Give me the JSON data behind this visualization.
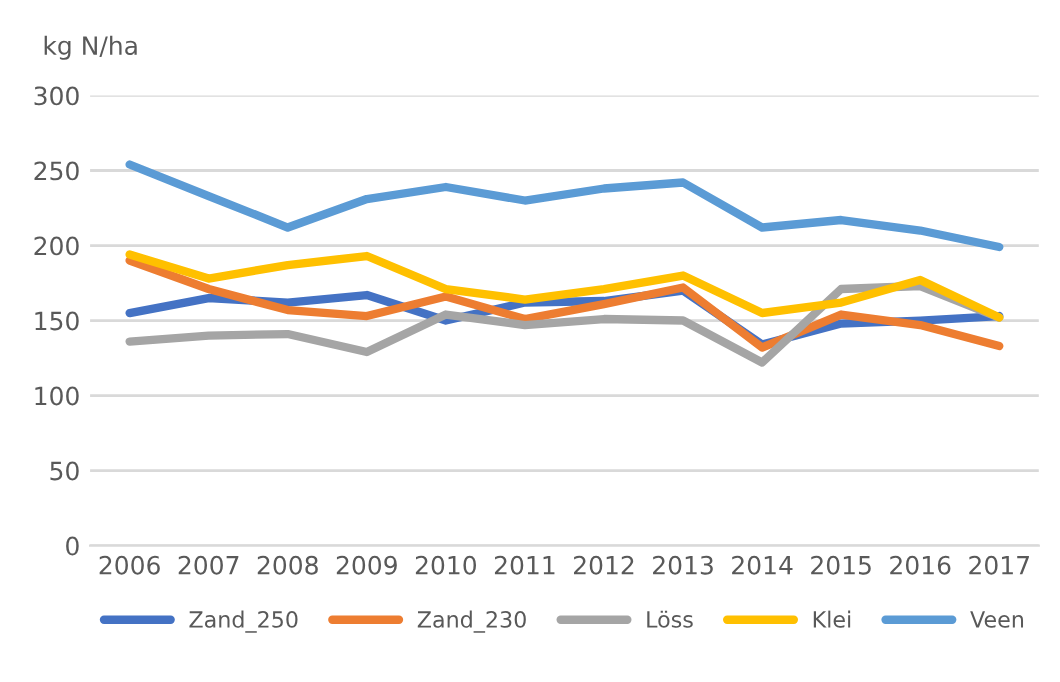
{
  "chart_data": {
    "type": "line",
    "ylabel": "kg N/ha",
    "categories": [
      "2006",
      "2007",
      "2008",
      "2009",
      "2010",
      "2011",
      "2012",
      "2013",
      "2014",
      "2015",
      "2016",
      "2017"
    ],
    "series": [
      {
        "name": "Zand_250",
        "color": "#4472c4",
        "values": [
          155,
          165,
          162,
          167,
          150,
          162,
          163,
          170,
          134,
          148,
          150,
          153
        ]
      },
      {
        "name": "Zand_230",
        "color": "#ed7d31",
        "values": [
          190,
          171,
          157,
          153,
          166,
          151,
          161,
          172,
          132,
          154,
          147,
          133
        ]
      },
      {
        "name": "Löss",
        "color": "#a5a5a5",
        "values": [
          136,
          140,
          141,
          129,
          154,
          147,
          151,
          150,
          122,
          171,
          173,
          152
        ]
      },
      {
        "name": "Klei",
        "color": "#ffc000",
        "values": [
          194,
          178,
          187,
          193,
          171,
          164,
          171,
          180,
          155,
          162,
          177,
          152
        ]
      },
      {
        "name": "Veen",
        "color": "#5b9bd5",
        "values": [
          254,
          233,
          212,
          231,
          239,
          230,
          238,
          242,
          212,
          217,
          210,
          199
        ]
      }
    ],
    "ylim": [
      0,
      300
    ],
    "yticks": [
      0,
      50,
      100,
      150,
      200,
      250,
      300
    ],
    "grid": "y",
    "legend": "bottom",
    "line_style": "solid",
    "marker": "none"
  }
}
